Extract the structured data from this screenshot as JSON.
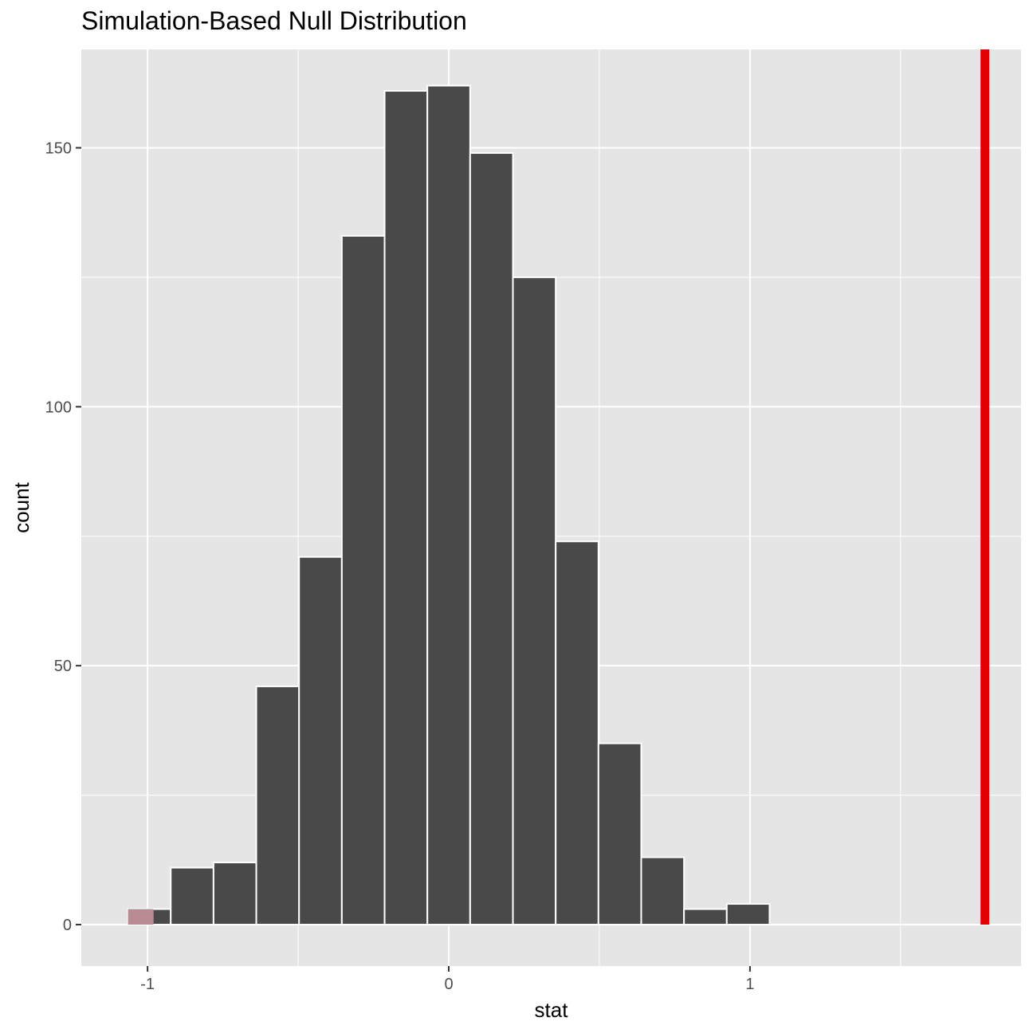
{
  "chart_data": {
    "type": "bar",
    "title": "Simulation-Based Null Distribution",
    "xlabel": "stat",
    "ylabel": "count",
    "xlim": [
      -1.22,
      1.9
    ],
    "ylim": [
      -8,
      169
    ],
    "bin_width": 0.142,
    "x_ticks": [
      -1,
      0,
      1
    ],
    "x_tick_labels": [
      "-1",
      "0",
      "1"
    ],
    "y_ticks": [
      0,
      50,
      100,
      150
    ],
    "y_tick_labels": [
      "0",
      "50",
      "100",
      "150"
    ],
    "bins": [
      {
        "center": -0.994,
        "count": 3
      },
      {
        "center": -0.852,
        "count": 11
      },
      {
        "center": -0.71,
        "count": 12
      },
      {
        "center": -0.568,
        "count": 46
      },
      {
        "center": -0.426,
        "count": 71
      },
      {
        "center": -0.284,
        "count": 133
      },
      {
        "center": -0.142,
        "count": 161
      },
      {
        "center": 0.0,
        "count": 162
      },
      {
        "center": 0.142,
        "count": 149
      },
      {
        "center": 0.284,
        "count": 125
      },
      {
        "center": 0.426,
        "count": 74
      },
      {
        "center": 0.568,
        "count": 35
      },
      {
        "center": 0.71,
        "count": 13
      },
      {
        "center": 0.852,
        "count": 3
      },
      {
        "center": 0.994,
        "count": 4
      }
    ],
    "shaded_region": {
      "from": -1.065,
      "to": -0.98,
      "count": 3
    },
    "observed_stat": 1.78,
    "grid": true,
    "colors": {
      "panel_background": "#e5e5e5",
      "grid": "#ffffff",
      "bar_fill": "#494949",
      "bar_border": "#ffffff",
      "shade_fill": "#b98c94",
      "observed_line": "#e30000"
    }
  }
}
